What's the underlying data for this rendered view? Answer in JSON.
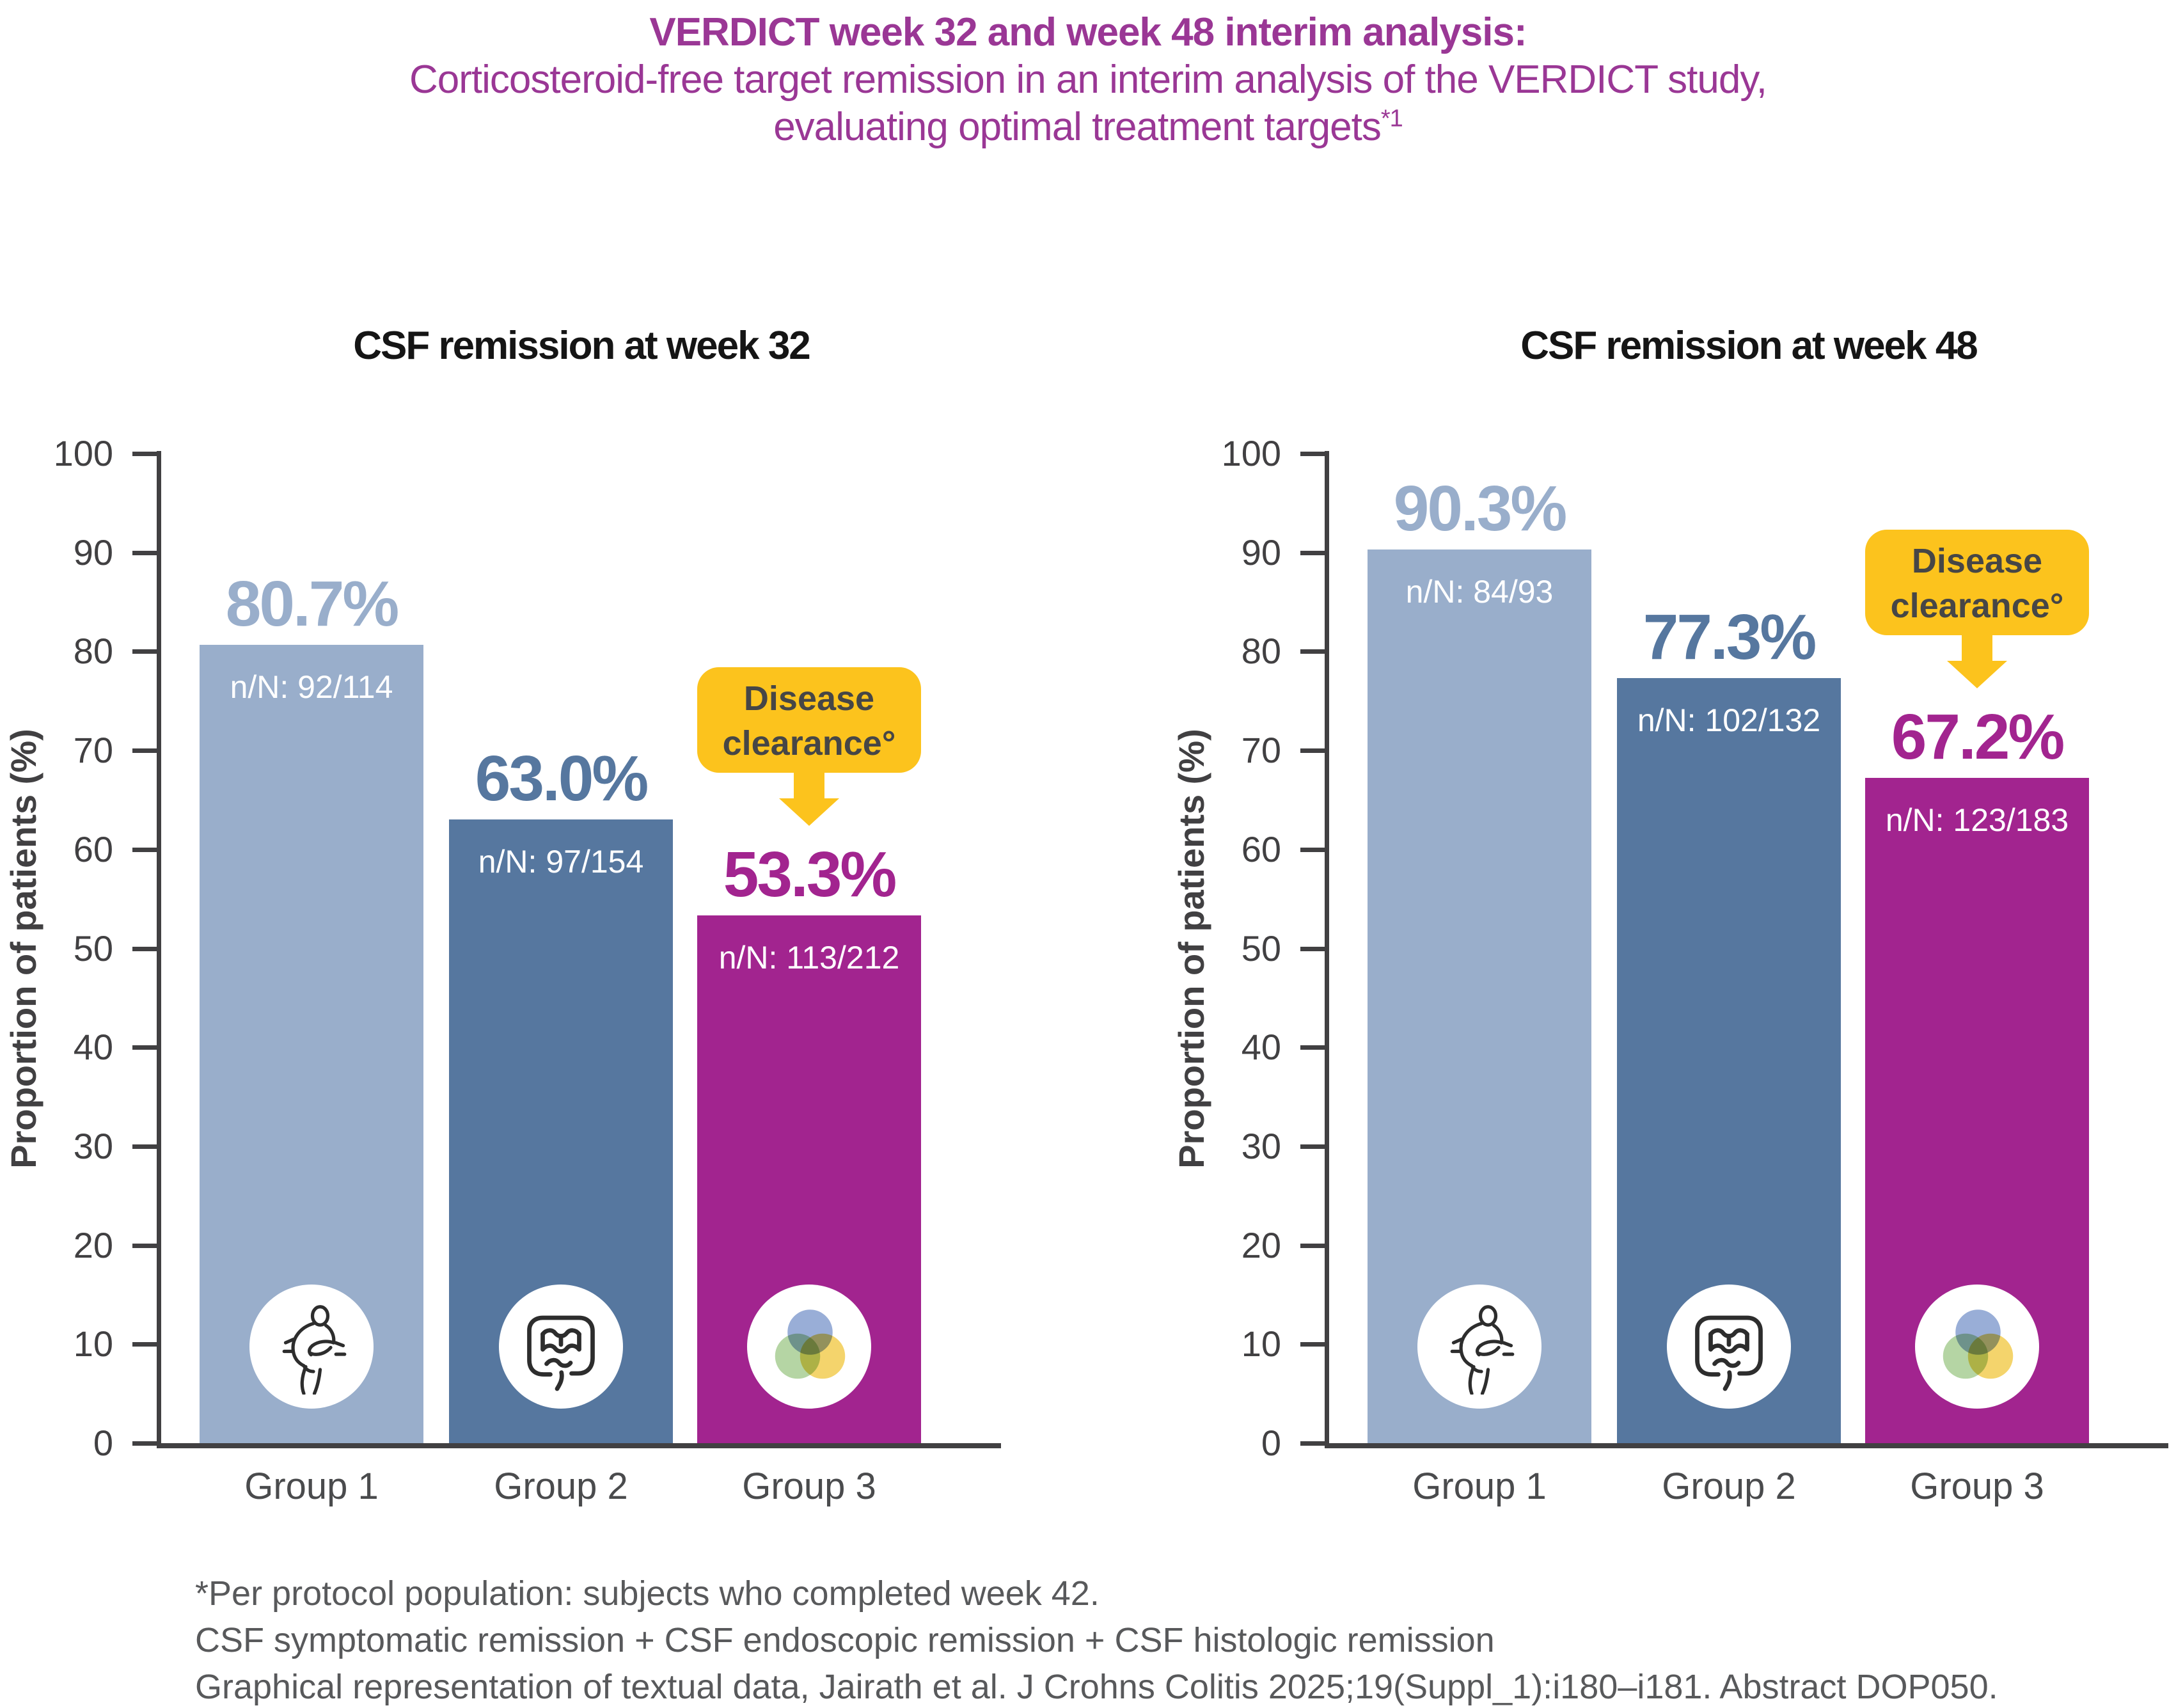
{
  "title": {
    "line1": "VERDICT week 32 and week 48 interim analysis:",
    "line2": "Corticosteroid-free target remission in an interim analysis of the VERDICT study,",
    "line3_pre": "evaluating optimal treatment targets",
    "line3_sup": "*1"
  },
  "colors": {
    "title_purple": "#9A3795",
    "axis_gray": "#414042",
    "category_gray": "#4A4B4D",
    "footnote_gray": "#58595B",
    "callout_yellow": "#FCC31D",
    "callout_text": "#464646",
    "bar_group1": "#99AECB",
    "bar_group2": "#56779F",
    "bar_group3": "#A2248F",
    "nn_white": "#FFFFFF"
  },
  "callout": {
    "line1": "Disease",
    "line2": "clearance°"
  },
  "chart_data": [
    {
      "type": "bar",
      "title": "CSF remission at week 32",
      "ylabel": "Proportion of patients (%)",
      "ylim": [
        0,
        100
      ],
      "yticks": [
        0,
        10,
        20,
        30,
        40,
        50,
        60,
        70,
        80,
        90,
        100
      ],
      "categories": [
        "Group 1",
        "Group 2",
        "Group 3"
      ],
      "values": [
        80.7,
        63.0,
        53.3
      ],
      "value_labels": [
        "80.7%",
        "63.0%",
        "53.3%"
      ],
      "n_labels": [
        "n/N: 92/114",
        "n/N: 97/154",
        "n/N: 113/212"
      ],
      "bar_colors": [
        "#99AECB",
        "#56779F",
        "#A2248F"
      ],
      "icons": [
        "patient-icon",
        "intestine-icon",
        "venn-icon"
      ],
      "callout_index": 2,
      "legend_position": "none",
      "grid": false
    },
    {
      "type": "bar",
      "title": "CSF remission at week 48",
      "ylabel": "Proportion of patients (%)",
      "ylim": [
        0,
        100
      ],
      "yticks": [
        0,
        10,
        20,
        30,
        40,
        50,
        60,
        70,
        80,
        90,
        100
      ],
      "categories": [
        "Group 1",
        "Group 2",
        "Group 3"
      ],
      "values": [
        90.3,
        77.3,
        67.2
      ],
      "value_labels": [
        "90.3%",
        "77.3%",
        "67.2%"
      ],
      "n_labels": [
        "n/N: 84/93",
        "n/N: 102/132",
        "n/N: 123/183"
      ],
      "bar_colors": [
        "#99AECB",
        "#56779F",
        "#A2248F"
      ],
      "icons": [
        "patient-icon",
        "intestine-icon",
        "venn-icon"
      ],
      "callout_index": 2,
      "legend_position": "none",
      "grid": false
    }
  ],
  "footnotes": [
    "*Per protocol population: subjects who completed week 42.",
    "CSF symptomatic remission + CSF endoscopic remission + CSF histologic remission",
    "Graphical representation of textual data, Jairath et al. J Crohns Colitis 2025;19(Suppl_1):i180–i181. Abstract DOP050."
  ]
}
